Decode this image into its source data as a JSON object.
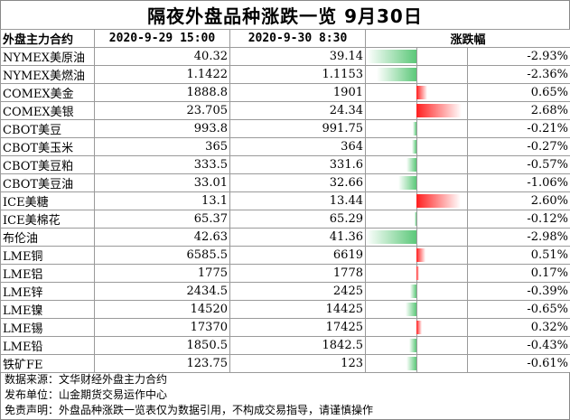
{
  "title": "隔夜外盘品种涨跌一览  9月30日",
  "headers": {
    "name": "外盘主力合约",
    "prev": "2020-9-29 15:00",
    "curr": "2020-9-30 8:30",
    "change": "涨跌幅"
  },
  "colors": {
    "up": "#ff1f1f",
    "down": "#5cc879"
  },
  "rows": [
    {
      "name": "NYMEX美原油",
      "prev": "40.32",
      "curr": "39.14",
      "change_pct": -2.93,
      "change": "-2.93%"
    },
    {
      "name": "NYMEX美燃油",
      "prev": "1.1422",
      "curr": "1.1153",
      "change_pct": -2.36,
      "change": "-2.36%"
    },
    {
      "name": "COMEX美金",
      "prev": "1888.8",
      "curr": "1901",
      "change_pct": 0.65,
      "change": "0.65%"
    },
    {
      "name": "COMEX美银",
      "prev": "23.705",
      "curr": "24.34",
      "change_pct": 2.68,
      "change": "2.68%"
    },
    {
      "name": "CBOT美豆",
      "prev": "993.8",
      "curr": "991.75",
      "change_pct": -0.21,
      "change": "-0.21%"
    },
    {
      "name": "CBOT美玉米",
      "prev": "365",
      "curr": "364",
      "change_pct": -0.27,
      "change": "-0.27%"
    },
    {
      "name": "CBOT美豆粕",
      "prev": "333.5",
      "curr": "331.6",
      "change_pct": -0.57,
      "change": "-0.57%"
    },
    {
      "name": "CBOT美豆油",
      "prev": "33.01",
      "curr": "32.66",
      "change_pct": -1.06,
      "change": "-1.06%"
    },
    {
      "name": "ICE美糖",
      "prev": "13.1",
      "curr": "13.44",
      "change_pct": 2.6,
      "change": "2.60%"
    },
    {
      "name": "ICE美棉花",
      "prev": "65.37",
      "curr": "65.29",
      "change_pct": -0.12,
      "change": "-0.12%"
    },
    {
      "name": "布伦油",
      "prev": "42.63",
      "curr": "41.36",
      "change_pct": -2.98,
      "change": "-2.98%"
    },
    {
      "name": "LME铜",
      "prev": "6585.5",
      "curr": "6619",
      "change_pct": 0.51,
      "change": "0.51%"
    },
    {
      "name": "LME铝",
      "prev": "1775",
      "curr": "1778",
      "change_pct": 0.17,
      "change": "0.17%"
    },
    {
      "name": "LME锌",
      "prev": "2434.5",
      "curr": "2425",
      "change_pct": -0.39,
      "change": "-0.39%"
    },
    {
      "name": "LME镍",
      "prev": "14520",
      "curr": "14425",
      "change_pct": -0.65,
      "change": "-0.65%"
    },
    {
      "name": "LME锡",
      "prev": "17370",
      "curr": "17425",
      "change_pct": 0.32,
      "change": "0.32%"
    },
    {
      "name": "LME铅",
      "prev": "1850.5",
      "curr": "1842.5",
      "change_pct": -0.43,
      "change": "-0.43%"
    },
    {
      "name": "铁矿FE",
      "prev": "123.75",
      "curr": "123",
      "change_pct": -0.61,
      "change": "-0.61%"
    }
  ],
  "footer": {
    "source": "数据来源：文华财经外盘主力合约",
    "publisher": "发布单位：山金期货交易运作中心",
    "disclaimer": "免责声明：外盘品种涨跌一览表仅为数据引用，不构成交易指导，请谨慎操作"
  }
}
